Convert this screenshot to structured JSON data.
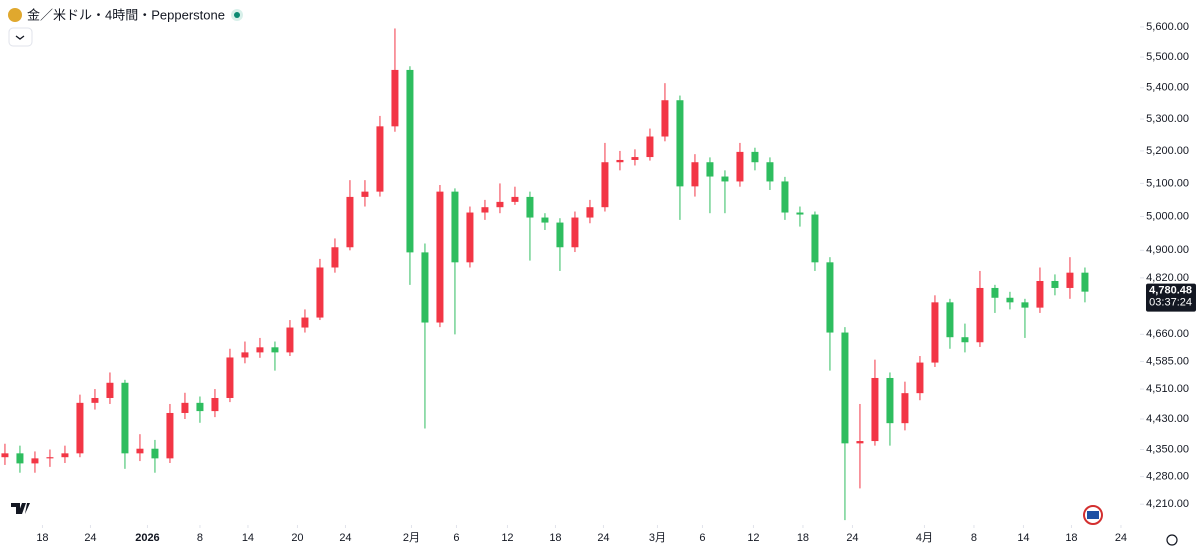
{
  "chart_data": {
    "type": "candlestick",
    "title": "金／米ドル・4時間・Pepperstone",
    "up_color": "#f23645",
    "down_color": "#2ebd5f",
    "open": [
      4330,
      4340,
      4314,
      4327,
      4330,
      4340,
      4473,
      4486,
      4527,
      4340,
      4352,
      4327,
      4446,
      4473,
      4451,
      4486,
      4596,
      4610,
      4624,
      4610,
      4679,
      4707,
      4850,
      4909,
      5059,
      5075,
      5277,
      5458,
      4894,
      4693,
      5075,
      4865,
      5012,
      5028,
      5044,
      5059,
      4997,
      4982,
      4909,
      4997,
      5028,
      5165,
      5172,
      5181,
      5245,
      5360,
      5091,
      5165,
      5121,
      5106,
      5197,
      5165,
      5106,
      5012,
      5006,
      4865,
      4665,
      4366,
      4372,
      4540,
      4419,
      4499,
      4582,
      4750,
      4652,
      4638,
      4791,
      4763,
      4750,
      4735,
      4811,
      4791,
      4835
    ],
    "high": [
      4365,
      4360,
      4345,
      4350,
      4360,
      4495,
      4510,
      4555,
      4535,
      4390,
      4375,
      4470,
      4500,
      4490,
      4510,
      4620,
      4640,
      4650,
      4640,
      4700,
      4730,
      4875,
      4935,
      5110,
      5110,
      5310,
      5595,
      5470,
      4920,
      5095,
      5085,
      5030,
      5050,
      5100,
      5090,
      5075,
      5010,
      4995,
      5015,
      5050,
      5225,
      5200,
      5205,
      5270,
      5415,
      5375,
      5190,
      5180,
      5140,
      5225,
      5210,
      5180,
      5120,
      5030,
      5015,
      4880,
      4680,
      4470,
      4590,
      4555,
      4530,
      4600,
      4770,
      4760,
      4690,
      4840,
      4800,
      4780,
      4760,
      4850,
      4830,
      4880,
      4850
    ],
    "low": [
      4310,
      4290,
      4290,
      4305,
      4315,
      4330,
      4455,
      4470,
      4300,
      4320,
      4290,
      4315,
      4430,
      4420,
      4435,
      4475,
      4580,
      4595,
      4560,
      4600,
      4665,
      4700,
      4835,
      4900,
      5030,
      5060,
      5260,
      4800,
      4405,
      4680,
      4660,
      4850,
      4990,
      5010,
      5035,
      4870,
      4960,
      4840,
      4895,
      4980,
      5015,
      5140,
      5155,
      5170,
      5230,
      4990,
      5060,
      5010,
      5010,
      5090,
      5140,
      5080,
      4990,
      4970,
      4840,
      4560,
      4170,
      4250,
      4360,
      4360,
      4400,
      4480,
      4570,
      4620,
      4610,
      4625,
      4720,
      4730,
      4650,
      4720,
      4770,
      4760,
      4750
    ],
    "close": [
      4340,
      4314,
      4327,
      4330,
      4340,
      4473,
      4486,
      4527,
      4340,
      4352,
      4327,
      4446,
      4473,
      4451,
      4486,
      4596,
      4610,
      4624,
      4610,
      4679,
      4707,
      4850,
      4909,
      5059,
      5075,
      5277,
      5458,
      4894,
      4693,
      5075,
      4865,
      5012,
      5028,
      5044,
      5059,
      4997,
      4982,
      4909,
      4997,
      5028,
      5165,
      5172,
      5181,
      5245,
      5360,
      5091,
      5165,
      5121,
      5106,
      5197,
      5165,
      5106,
      5012,
      5006,
      4865,
      4665,
      4366,
      4372,
      4540,
      4419,
      4499,
      4582,
      4750,
      4652,
      4638,
      4791,
      4763,
      4750,
      4735,
      4811,
      4791,
      4835,
      4780.48
    ],
    "log_scale": true,
    "ylim": [
      4158,
      5691
    ],
    "yticks": [
      {
        "value": 5600,
        "label": "5,600.00"
      },
      {
        "value": 5500,
        "label": "5,500.00"
      },
      {
        "value": 5400,
        "label": "5,400.00"
      },
      {
        "value": 5300,
        "label": "5,300.00"
      },
      {
        "value": 5200,
        "label": "5,200.00"
      },
      {
        "value": 5100,
        "label": "5,100.00"
      },
      {
        "value": 5000,
        "label": "5,000.00"
      },
      {
        "value": 4900,
        "label": "4,900.00"
      },
      {
        "value": 4820,
        "label": "4,820.00"
      },
      {
        "value": 4660,
        "label": "4,660.00"
      },
      {
        "value": 4585,
        "label": "4,585.00"
      },
      {
        "value": 4510,
        "label": "4,510.00"
      },
      {
        "value": 4430,
        "label": "4,430.00"
      },
      {
        "value": 4350,
        "label": "4,350.00"
      },
      {
        "value": 4280,
        "label": "4,280.00"
      },
      {
        "value": 4210,
        "label": "4,210.00"
      }
    ],
    "xlim": [
      -0.33,
      75.67
    ],
    "xticks": [
      {
        "value": 2.5,
        "label": "18"
      },
      {
        "value": 5.7,
        "label": "24"
      },
      {
        "value": 9.5,
        "label": "2026"
      },
      {
        "value": 13,
        "label": "8"
      },
      {
        "value": 16.2,
        "label": "14"
      },
      {
        "value": 19.5,
        "label": "20"
      },
      {
        "value": 22.7,
        "label": "24"
      },
      {
        "value": 27.1,
        "label": "2月"
      },
      {
        "value": 30.1,
        "label": "6"
      },
      {
        "value": 33.5,
        "label": "12"
      },
      {
        "value": 36.7,
        "label": "18"
      },
      {
        "value": 39.9,
        "label": "24"
      },
      {
        "value": 43.5,
        "label": "3月"
      },
      {
        "value": 46.5,
        "label": "6"
      },
      {
        "value": 49.9,
        "label": "12"
      },
      {
        "value": 53.2,
        "label": "18"
      },
      {
        "value": 56.5,
        "label": "24"
      },
      {
        "value": 61.3,
        "label": "4月"
      },
      {
        "value": 64.6,
        "label": "8"
      },
      {
        "value": 67.9,
        "label": "14"
      },
      {
        "value": 71.1,
        "label": "18"
      },
      {
        "value": 74.4,
        "label": "24"
      }
    ],
    "last_price": {
      "value": 4780.48,
      "label": "4,780.48"
    },
    "countdown": "03:37:24"
  }
}
